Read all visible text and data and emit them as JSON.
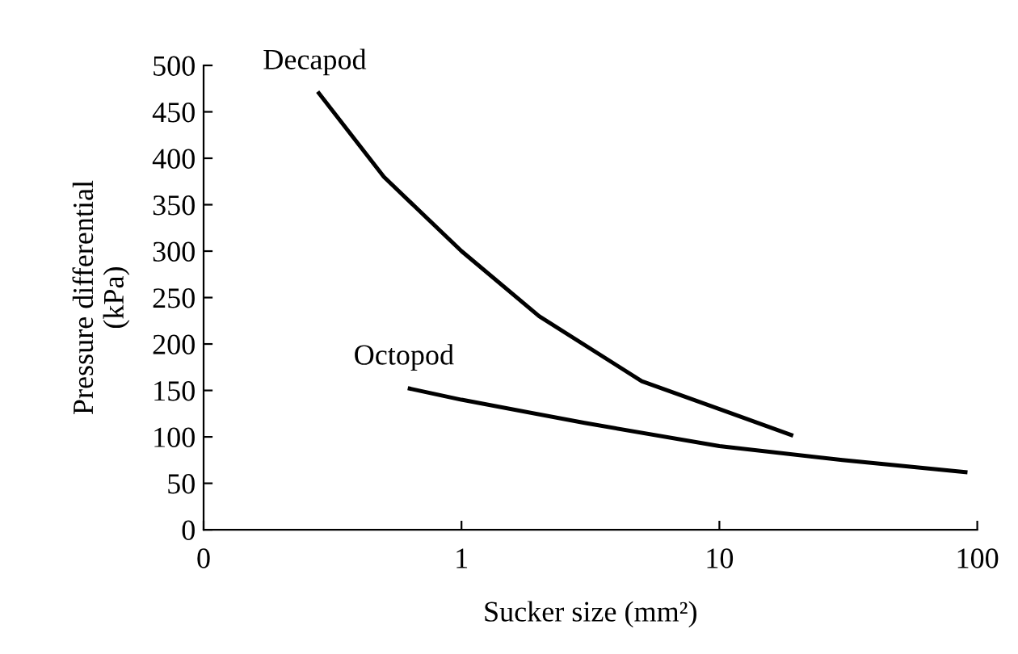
{
  "chart_data": {
    "type": "line",
    "xlabel": "Sucker size (mm²)",
    "ylabel": "Pressure differential\n(kPa)",
    "log": "x",
    "xlim": [
      0.1,
      100
    ],
    "xticks": [
      {
        "value": 0.1,
        "label": "0"
      },
      1,
      10,
      100
    ],
    "ylim": [
      0,
      500
    ],
    "yticks": [
      0,
      50,
      100,
      150,
      200,
      250,
      300,
      350,
      400,
      450,
      500
    ],
    "grid": false,
    "legend": false,
    "marker": "none",
    "line_style": "solid",
    "series": [
      {
        "name": "Decapod",
        "color": "#000000",
        "x": [
          0.28,
          0.5,
          1,
          2,
          5,
          10,
          19
        ],
        "values": [
          470,
          380,
          300,
          230,
          160,
          130,
          102
        ]
      },
      {
        "name": "Octopod",
        "color": "#000000",
        "x": [
          0.63,
          1,
          3,
          10,
          30,
          90
        ],
        "values": [
          152,
          140,
          115,
          90,
          75,
          62
        ]
      }
    ]
  }
}
